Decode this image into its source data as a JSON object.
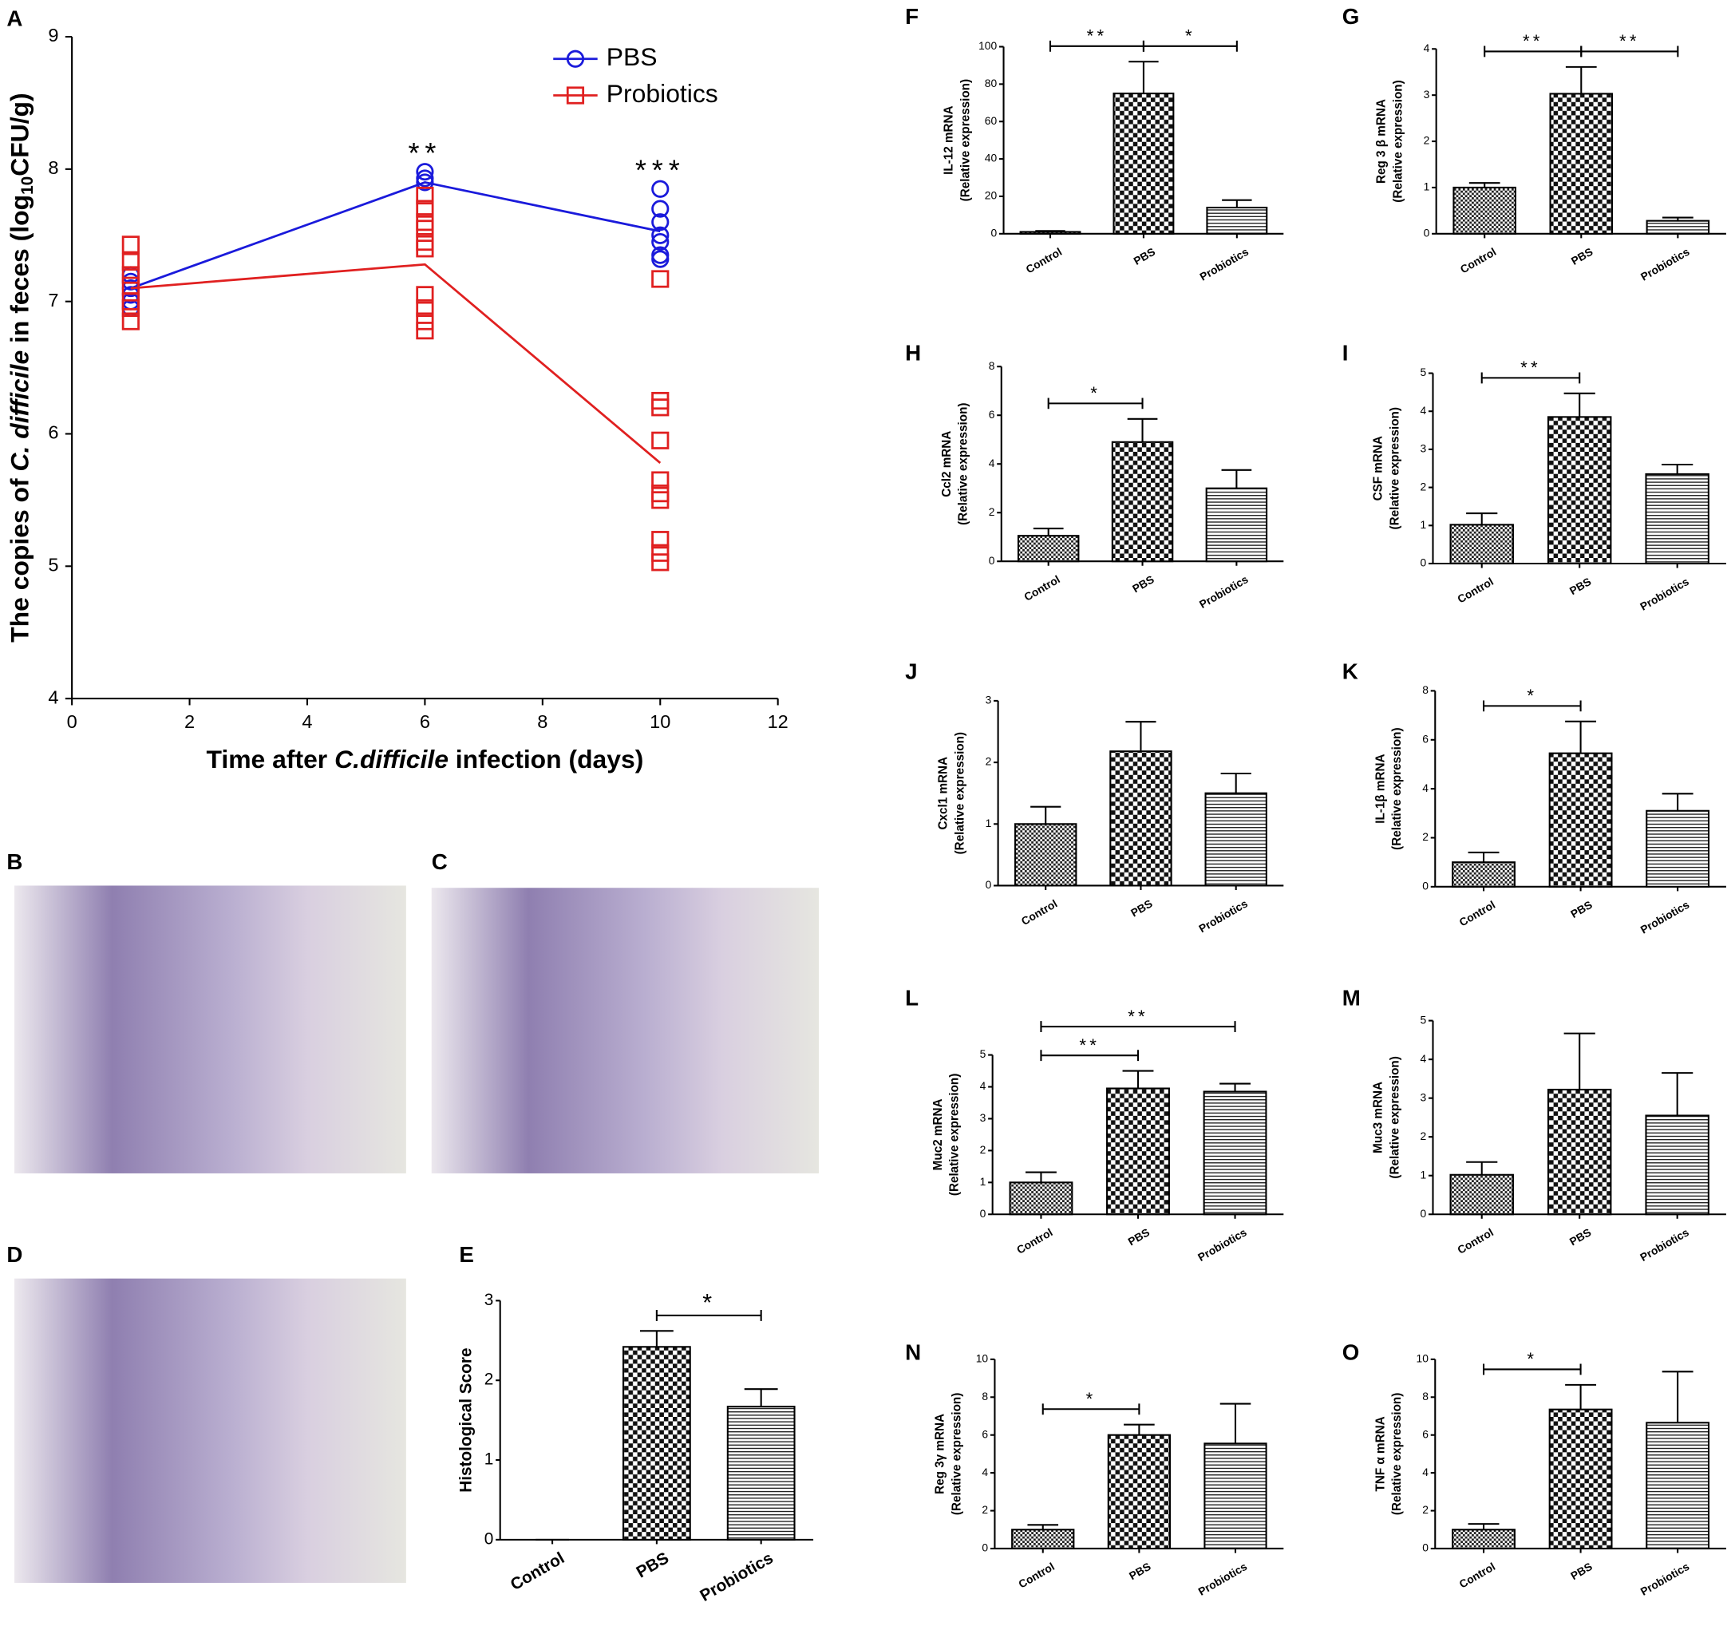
{
  "image_panels": [
    "B",
    "C",
    "D"
  ],
  "chart_data": [
    {
      "type": "scatter",
      "panel": "A",
      "xlabel": [
        {
          "text": "Time after "
        },
        {
          "text": "C.difficile",
          "style": "italic"
        },
        {
          "text": " infection (days)"
        }
      ],
      "ylabel": [
        {
          "text": "The copies of "
        },
        {
          "text": "C. difficile",
          "style": "italic"
        },
        {
          "text": " in feces (log"
        },
        {
          "text": "10",
          "style": "sub"
        },
        {
          "text": "CFU/g)"
        }
      ],
      "xlim": [
        0,
        12
      ],
      "xticks": [
        0,
        2,
        4,
        6,
        8,
        10,
        12
      ],
      "ylim": [
        4,
        9
      ],
      "yticks": [
        4,
        5,
        6,
        7,
        8,
        9
      ],
      "x": [
        1,
        6,
        10
      ],
      "series": [
        {
          "name": "PBS",
          "color": "#1a1adb",
          "marker": "circle",
          "mean": [
            7.1,
            7.9,
            7.53
          ],
          "points": [
            [
              7.2,
              7.15,
              7.1,
              7.05,
              7.0,
              6.95
            ],
            [
              7.98,
              7.93,
              7.9
            ],
            [
              7.85,
              7.7,
              7.6,
              7.5,
              7.45,
              7.35,
              7.32
            ]
          ]
        },
        {
          "name": "Probiotics",
          "color": "#e02020",
          "marker": "square",
          "mean": [
            7.1,
            7.28,
            5.78
          ],
          "points": [
            [
              7.43,
              7.3,
              7.2,
              7.12,
              7.0,
              6.95,
              6.85
            ],
            [
              7.8,
              7.7,
              7.6,
              7.55,
              7.45,
              7.4,
              7.05,
              6.95,
              6.85,
              6.78
            ],
            [
              7.17,
              6.25,
              6.2,
              5.95,
              5.65,
              5.55,
              5.5,
              5.2,
              5.1,
              5.03
            ]
          ]
        }
      ],
      "annotations": [
        {
          "text": "**",
          "x": 6
        },
        {
          "text": "***",
          "x": 10
        }
      ]
    },
    {
      "type": "bar",
      "panel": "E",
      "ylabel": [
        "Histological Score"
      ],
      "categories": [
        "Control",
        "PBS",
        "Probiotics"
      ],
      "values": [
        0,
        2.42,
        1.67
      ],
      "errors": [
        0,
        0.2,
        0.22
      ],
      "ylim": [
        0,
        3
      ],
      "yticks": [
        0,
        1,
        2,
        3
      ],
      "annotations": [
        {
          "text": "*",
          "between": [
            "PBS",
            "Probiotics"
          ]
        }
      ]
    },
    {
      "type": "bar",
      "panel": "F",
      "ylabel": [
        "IL-12 mRNA",
        "(Relative expression)"
      ],
      "categories": [
        "Control",
        "PBS",
        "Probiotics"
      ],
      "values": [
        1,
        75,
        14
      ],
      "errors": [
        0.5,
        17,
        4
      ],
      "ylim": [
        0,
        100
      ],
      "yticks": [
        0,
        20,
        40,
        60,
        80,
        100
      ],
      "annotations": [
        {
          "text": "**",
          "between": [
            "Control",
            "PBS"
          ]
        },
        {
          "text": "*",
          "between": [
            "PBS",
            "Probiotics"
          ]
        }
      ]
    },
    {
      "type": "bar",
      "panel": "G",
      "ylabel": [
        "Reg 3 β mRNA",
        "(Relative expression)"
      ],
      "categories": [
        "Control",
        "PBS",
        "Probiotics"
      ],
      "values": [
        1.0,
        3.03,
        0.28
      ],
      "errors": [
        0.1,
        0.58,
        0.07
      ],
      "ylim": [
        0,
        4
      ],
      "yticks": [
        0,
        1,
        2,
        3,
        4
      ],
      "annotations": [
        {
          "text": "**",
          "between": [
            "Control",
            "PBS"
          ]
        },
        {
          "text": "**",
          "between": [
            "PBS",
            "Probiotics"
          ]
        }
      ]
    },
    {
      "type": "bar",
      "panel": "H",
      "ylabel": [
        "Ccl2 mRNA",
        "(Relative expression)"
      ],
      "categories": [
        "Control",
        "PBS",
        "Probiotics"
      ],
      "values": [
        1.05,
        4.9,
        3.0
      ],
      "errors": [
        0.3,
        0.95,
        0.75
      ],
      "ylim": [
        0,
        8
      ],
      "yticks": [
        0,
        2,
        4,
        6,
        8
      ],
      "annotations": [
        {
          "text": "*",
          "between": [
            "Control",
            "PBS"
          ]
        }
      ]
    },
    {
      "type": "bar",
      "panel": "I",
      "ylabel": [
        "CSF mRNA",
        "(Relative expression)"
      ],
      "categories": [
        "Control",
        "PBS",
        "Probiotics"
      ],
      "values": [
        1.02,
        3.85,
        2.35
      ],
      "errors": [
        0.3,
        0.62,
        0.25
      ],
      "ylim": [
        0,
        5
      ],
      "yticks": [
        0,
        1,
        2,
        3,
        4,
        5
      ],
      "annotations": [
        {
          "text": "**",
          "between": [
            "Control",
            "PBS"
          ]
        }
      ]
    },
    {
      "type": "bar",
      "panel": "J",
      "ylabel": [
        "Cxcl1 mRNA",
        "(Relative expression)"
      ],
      "categories": [
        "Control",
        "PBS",
        "Probiotics"
      ],
      "values": [
        1.0,
        2.18,
        1.5
      ],
      "errors": [
        0.28,
        0.48,
        0.32
      ],
      "ylim": [
        0,
        3
      ],
      "yticks": [
        0,
        1,
        2,
        3
      ],
      "annotations": []
    },
    {
      "type": "bar",
      "panel": "K",
      "ylabel": [
        "IL-1β mRNA",
        "(Relative expression)"
      ],
      "categories": [
        "Control",
        "PBS",
        "Probiotics"
      ],
      "values": [
        1.0,
        5.45,
        3.1
      ],
      "errors": [
        0.4,
        1.3,
        0.7
      ],
      "ylim": [
        0,
        8
      ],
      "yticks": [
        0,
        2,
        4,
        6,
        8
      ],
      "annotations": [
        {
          "text": "*",
          "between": [
            "Control",
            "PBS"
          ]
        }
      ]
    },
    {
      "type": "bar",
      "panel": "L",
      "ylabel": [
        "Muc2 mRNA",
        "(Relative expression)"
      ],
      "categories": [
        "Control",
        "PBS",
        "Probiotics"
      ],
      "values": [
        1.0,
        3.95,
        3.85
      ],
      "errors": [
        0.32,
        0.55,
        0.25
      ],
      "ylim": [
        0,
        5
      ],
      "yticks": [
        0,
        1,
        2,
        3,
        4,
        5
      ],
      "annotations": [
        {
          "text": "**",
          "between": [
            "Control",
            "PBS"
          ]
        },
        {
          "text": "**",
          "between": [
            "Control",
            "Probiotics"
          ]
        }
      ]
    },
    {
      "type": "bar",
      "panel": "M",
      "ylabel": [
        "Muc3 mRNA",
        "(Relative expression)"
      ],
      "categories": [
        "Control",
        "PBS",
        "Probiotics"
      ],
      "values": [
        1.02,
        3.22,
        2.55
      ],
      "errors": [
        0.33,
        1.45,
        1.1
      ],
      "ylim": [
        0,
        5
      ],
      "yticks": [
        0,
        1,
        2,
        3,
        4,
        5
      ],
      "annotations": []
    },
    {
      "type": "bar",
      "panel": "N",
      "ylabel": [
        "Reg 3γ mRNA",
        "(Relative expression)"
      ],
      "categories": [
        "Control",
        "PBS",
        "Probiotics"
      ],
      "values": [
        1.0,
        6.0,
        5.55
      ],
      "errors": [
        0.25,
        0.55,
        2.1
      ],
      "ylim": [
        0,
        10
      ],
      "yticks": [
        0,
        2,
        4,
        6,
        8,
        10
      ],
      "annotations": [
        {
          "text": "*",
          "between": [
            "Control",
            "PBS"
          ]
        }
      ]
    },
    {
      "type": "bar",
      "panel": "O",
      "ylabel": [
        "TNF α mRNA",
        "(Relative expression)"
      ],
      "categories": [
        "Control",
        "PBS",
        "Probiotics"
      ],
      "values": [
        1.0,
        7.35,
        6.65
      ],
      "errors": [
        0.3,
        1.3,
        2.7
      ],
      "ylim": [
        0,
        10
      ],
      "yticks": [
        0,
        2,
        4,
        6,
        8,
        10
      ],
      "annotations": [
        {
          "text": "*",
          "between": [
            "Control",
            "PBS"
          ]
        }
      ]
    }
  ]
}
